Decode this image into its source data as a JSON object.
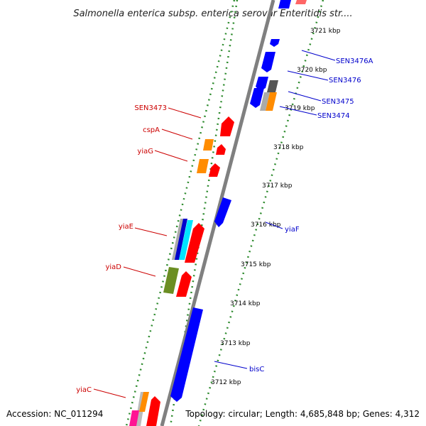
{
  "header": {
    "title": "Salmonella enterica subsp. enterica serovar Enteritidis str...."
  },
  "footer": {
    "accession": "Accession: NC_011294",
    "topology": "Topology: circular; Length: 4,685,848 bp; Genes: 4,312"
  },
  "map": {
    "tick_unit": "kbp",
    "ticks": [
      "3721 kbp",
      "3720 kbp",
      "3719 kbp",
      "3718 kbp",
      "3717 kbp",
      "3716 kbp",
      "3715 kbp",
      "3714 kbp",
      "3713 kbp",
      "3712 kbp"
    ],
    "colors": {
      "forward_label": "#cc0000",
      "reverse_label": "#0000cc",
      "backbone": "#808080",
      "dots": "#2e8b2e"
    },
    "genes_left": [
      {
        "name": "SEN3473",
        "color": "#ff0000"
      },
      {
        "name": "cspA",
        "color": "#ff8c00"
      },
      {
        "name": "yiaG",
        "color": "#ff8c00"
      },
      {
        "name": "yiaE",
        "color": "#ff0000"
      },
      {
        "name": "yiaD",
        "color": "#6b8e23"
      },
      {
        "name": "yiaC",
        "color": "#ff69b4"
      }
    ],
    "genes_right": [
      {
        "name": "SEN3476A",
        "color": "#0000ff"
      },
      {
        "name": "SEN3476",
        "color": "#0000ff"
      },
      {
        "name": "SEN3475",
        "color": "#0000ff"
      },
      {
        "name": "SEN3474",
        "color": "#808080"
      },
      {
        "name": "yiaF",
        "color": "#0000ff"
      },
      {
        "name": "bisC",
        "color": "#0000ff"
      }
    ]
  }
}
